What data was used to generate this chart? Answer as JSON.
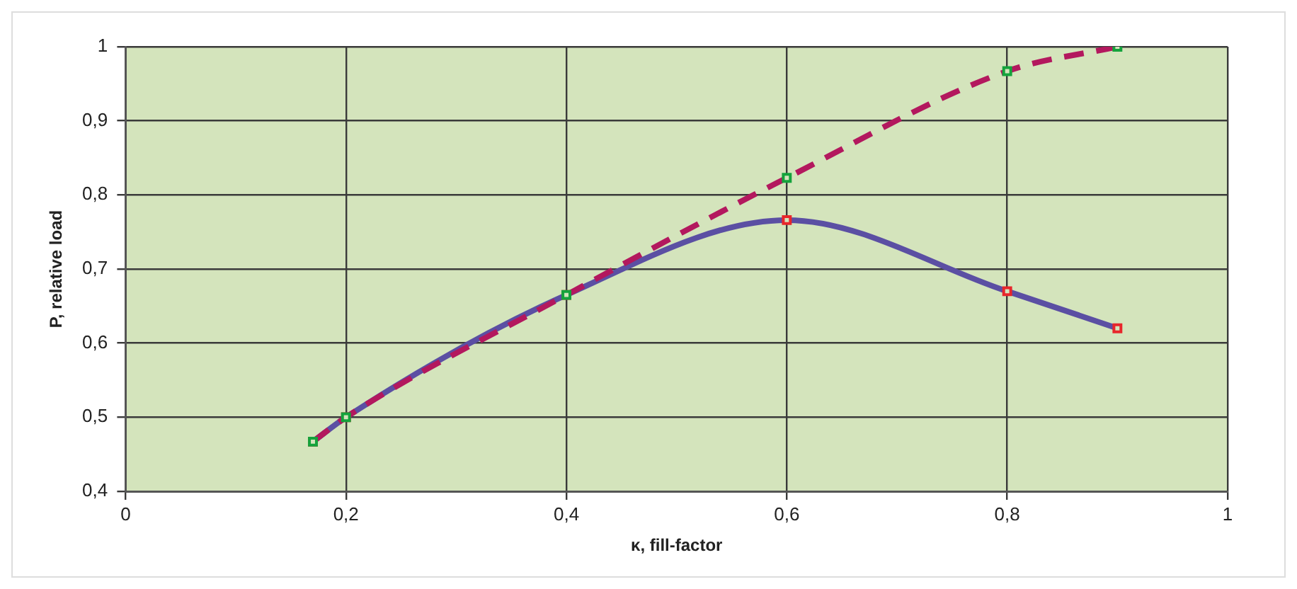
{
  "chart_data": {
    "type": "line",
    "xlabel": "κ, fill-factor",
    "ylabel": "P, relative load",
    "x": [
      0.17,
      0.2,
      0.4,
      0.6,
      0.8,
      0.9
    ],
    "series": [
      {
        "color": "#5b4fa3",
        "values": [
          0.467,
          0.5,
          0.665,
          0.766,
          0.67,
          0.62
        ],
        "line_style": "solid"
      },
      {
        "color": "#b3185e",
        "values": [
          0.467,
          0.5,
          0.665,
          0.823,
          0.967,
          1.0
        ],
        "line_style": "dashed"
      }
    ],
    "xlim": [
      0,
      1
    ],
    "xticks": [
      0,
      {
        "value": 0.2,
        "label": "0,2"
      },
      {
        "value": 0.4,
        "label": "0,4"
      },
      {
        "value": 0.6,
        "label": "0,6"
      },
      {
        "value": 0.8,
        "label": "0,8"
      },
      1
    ],
    "ylim": [
      0.4,
      1
    ],
    "yticks": [
      {
        "value": 0.4,
        "label": "0,4"
      },
      {
        "value": 0.5,
        "label": "0,5"
      },
      {
        "value": 0.6,
        "label": "0,6"
      },
      {
        "value": 0.7,
        "label": "0,7"
      },
      {
        "value": 0.8,
        "label": "0,8"
      },
      {
        "value": 0.9,
        "label": "0,9"
      },
      1
    ],
    "grid": true,
    "legend": false,
    "marker": "square"
  }
}
